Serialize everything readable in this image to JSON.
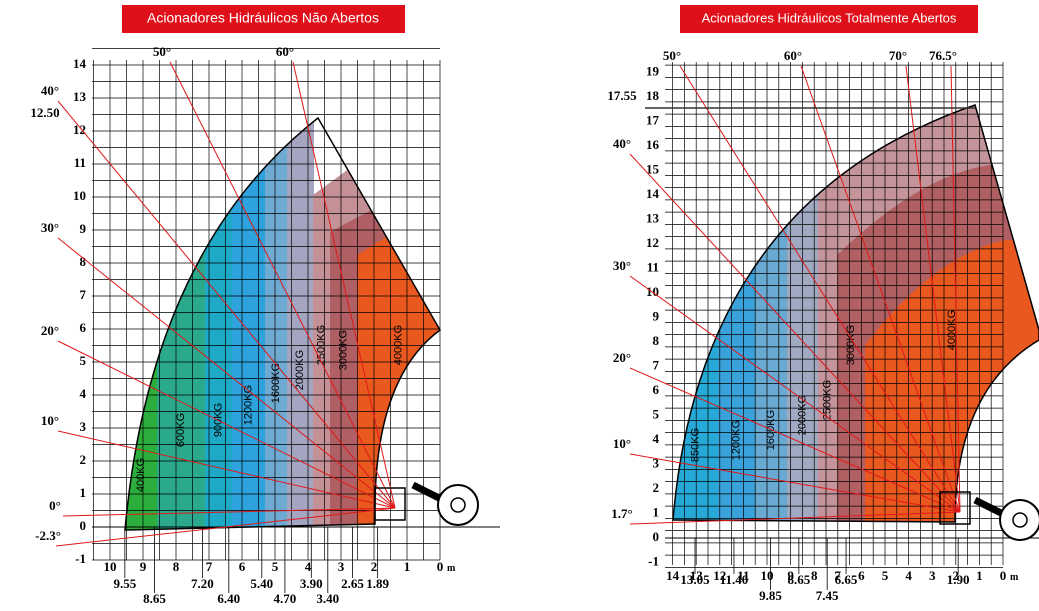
{
  "panels": [
    {
      "title": "Acionadores Hidráulicos Não Abertos",
      "y_ticks": [
        14,
        13,
        12,
        11,
        10,
        9,
        8,
        7,
        6,
        5,
        4,
        3,
        2,
        1,
        0,
        -1
      ],
      "x_ticks": [
        10,
        9,
        8,
        7,
        6,
        5,
        4,
        3,
        2,
        1,
        0
      ],
      "x_unit": "m",
      "angles": [
        "50°",
        "60°",
        "40°",
        "30°",
        "20°",
        "10°",
        "0°",
        "-2.3°"
      ],
      "heights": [
        "12.50"
      ],
      "reaches": [
        "9.55",
        "8.65",
        "7.20",
        "6.40",
        "5.40",
        "4.70",
        "3.90",
        "3.40",
        "2.65",
        "1.89"
      ],
      "zones": [
        "400KG",
        "600KG",
        "900KG",
        "1200KG",
        "1600KG",
        "2000KG",
        "2500KG",
        "3000KG",
        "4000KG"
      ]
    },
    {
      "title": "Acionadores Hidráulicos Totalmente Abertos",
      "y_ticks": [
        19,
        18,
        17,
        16,
        15,
        14,
        13,
        12,
        11,
        10,
        9,
        8,
        7,
        6,
        5,
        4,
        3,
        2,
        1,
        0,
        -1
      ],
      "x_ticks": [
        14,
        13,
        12,
        11,
        10,
        9,
        8,
        7,
        6,
        5,
        4,
        3,
        2,
        1,
        0
      ],
      "x_unit": "m",
      "angles": [
        "50°",
        "60°",
        "70°",
        "76.5°",
        "40°",
        "30°",
        "20°",
        "10°",
        "1.7°"
      ],
      "heights": [
        "17.55"
      ],
      "reaches": [
        "13.05",
        "11.40",
        "9.85",
        "8.65",
        "7.45",
        "6.65",
        "1.90"
      ],
      "zones": [
        "850KG",
        "1200KG",
        "1600KG",
        "2000KG",
        "2500KG",
        "3000KG",
        "4000KG"
      ]
    }
  ]
}
